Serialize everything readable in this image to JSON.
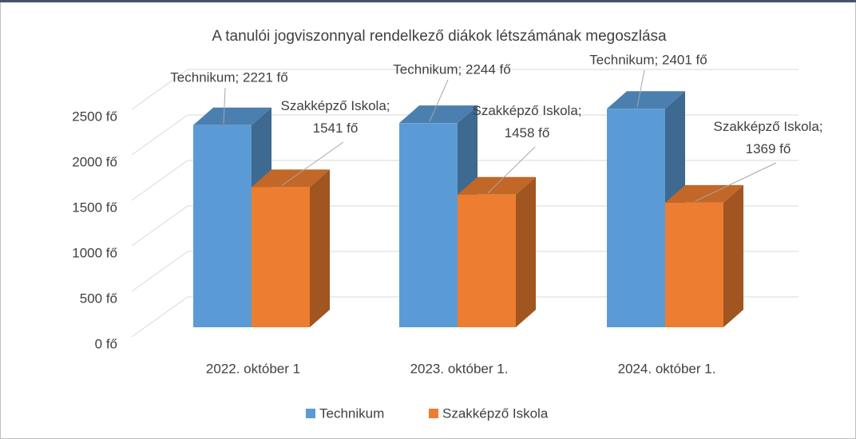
{
  "chart_data": {
    "type": "bar3d",
    "title": "A tanulói jogviszonnyal rendelkező diákok létszámának megoszlása",
    "categories": [
      "2022. október 1",
      "2023. október 1.",
      "2024. október 1."
    ],
    "series": [
      {
        "name": "Technikum",
        "color": "#5b9bd5",
        "values": [
          2221,
          2244,
          2401
        ],
        "value_labels": [
          "Technikum; 2221 fő",
          "Technikum; 2244 fő",
          "Technikum; 2401 fő"
        ]
      },
      {
        "name": "Szakképző Iskola",
        "color": "#ed7d31",
        "values": [
          1541,
          1458,
          1369
        ],
        "value_labels": [
          "Szakképző Iskola; 1541 fő",
          "Szakképző Iskola; 1458 fő",
          "Szakképző Iskola; 1369 fő"
        ]
      }
    ],
    "ylim": [
      0,
      2500
    ],
    "yticks": [
      {
        "value": 0,
        "label": "0 fő"
      },
      {
        "value": 500,
        "label": "500 fő"
      },
      {
        "value": 1000,
        "label": "1000 fő"
      },
      {
        "value": 1500,
        "label": "1500 fő"
      },
      {
        "value": 2000,
        "label": "2000 fő"
      },
      {
        "value": 2500,
        "label": "2500 fő"
      }
    ],
    "grid": true,
    "legend": "bottom"
  }
}
